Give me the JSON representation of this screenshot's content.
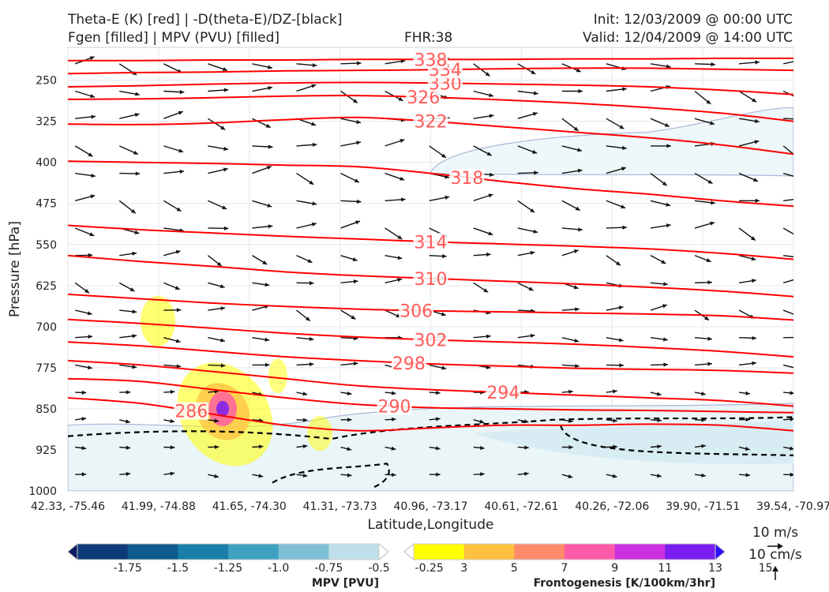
{
  "header": {
    "title_line1": "Theta-E (K) [red] | -D(theta-E)/DZ-[black]",
    "title_line2": "Fgen [filled] | MPV (PVU) [filled]",
    "fhr": "FHR:38",
    "init": "Init: 12/03/2009 @ 00:00 UTC",
    "valid": "Valid: 12/04/2009 @ 14:00 UTC"
  },
  "chart_data": {
    "type": "cross-section",
    "xlabel": "Latitude,Longitude",
    "ylabel": "Pressure [hPa]",
    "x_ticks": [
      "42.33, -75.46",
      "41.99, -74.88",
      "41.65, -74.30",
      "41.31, -73.73",
      "40.96, -73.17",
      "40.61, -72.61",
      "40.26, -72.06",
      "39.90, -71.51",
      "39.54, -70.97"
    ],
    "y_ticks": [
      250,
      325,
      400,
      475,
      550,
      625,
      700,
      775,
      850,
      925,
      1000
    ],
    "ylim": [
      1000,
      190
    ],
    "y_scale": "linear-inverted",
    "theta_e_color": "#ff0000",
    "theta_e_contours": [
      {
        "level": 286,
        "label": "286",
        "label_x": 0.17,
        "y": [
          830,
          840,
          860,
          880,
          890,
          885,
          880,
          880,
          878,
          880,
          890
        ]
      },
      {
        "level": 290,
        "label": "290",
        "label_x": 0.45,
        "y": [
          795,
          800,
          815,
          830,
          842,
          848,
          850,
          852,
          853,
          855,
          857
        ]
      },
      {
        "level": 294,
        "label": "294",
        "label_x": 0.6,
        "y": [
          762,
          770,
          782,
          795,
          808,
          815,
          820,
          825,
          830,
          835,
          845
        ]
      },
      {
        "level": 298,
        "label": "298",
        "label_x": 0.47,
        "y": [
          728,
          735,
          745,
          755,
          762,
          768,
          772,
          776,
          778,
          780,
          785
        ]
      },
      {
        "level": 302,
        "label": "302",
        "label_x": 0.5,
        "y": [
          687,
          694,
          703,
          712,
          719,
          724,
          728,
          732,
          738,
          745,
          755
        ]
      },
      {
        "level": 306,
        "label": "306",
        "label_x": 0.48,
        "y": [
          641,
          649,
          657,
          663,
          668,
          671,
          673,
          675,
          677,
          680,
          688
        ]
      },
      {
        "level": 310,
        "label": "310",
        "label_x": 0.5,
        "y": [
          570,
          581,
          590,
          600,
          607,
          612,
          617,
          622,
          628,
          635,
          645
        ]
      },
      {
        "level": 314,
        "label": "314",
        "label_x": 0.5,
        "y": [
          515,
          523,
          529,
          535,
          540,
          545,
          549,
          553,
          558,
          566,
          577
        ]
      },
      {
        "level": 318,
        "label": "318",
        "label_x": 0.55,
        "y": [
          398,
          400,
          402,
          405,
          408,
          420,
          435,
          448,
          458,
          470,
          480
        ]
      },
      {
        "level": 322,
        "label": "322",
        "label_x": 0.5,
        "y": [
          330,
          331,
          328,
          322,
          318,
          325,
          335,
          345,
          355,
          368,
          385
        ]
      },
      {
        "level": 326,
        "label": "326",
        "label_x": 0.49,
        "y": [
          285,
          284,
          282,
          279,
          278,
          281,
          286,
          292,
          300,
          310,
          325
        ]
      },
      {
        "level": 330,
        "label": "330",
        "label_x": 0.52,
        "y": [
          262,
          260,
          257,
          255,
          254,
          255,
          257,
          259,
          262,
          268,
          276
        ]
      },
      {
        "level": 334,
        "label": "334",
        "label_x": 0.52,
        "y": [
          238,
          236,
          235,
          233,
          232,
          231,
          229,
          228,
          228,
          230,
          232
        ]
      },
      {
        "level": 338,
        "label": "338",
        "label_x": 0.5,
        "y": [
          214,
          214,
          213,
          213,
          212,
          212,
          212,
          211,
          211,
          210,
          210
        ]
      }
    ],
    "wind_quiver": {
      "label_u": "10 m/s",
      "label_w": "10 cm/s",
      "color": "#111111"
    },
    "mpv_colorbar": {
      "label": "MPV [PVU]",
      "ticks": [
        "-1.75",
        "-1.5",
        "-1.25",
        "-1.0",
        "-0.75",
        "-0.5",
        "-0.25"
      ],
      "colors": [
        "#0a1a5c",
        "#0d3a78",
        "#0f5a8e",
        "#1a7fa8",
        "#3fa0c2",
        "#7fbfd8",
        "#bfdfea",
        "#ffffff"
      ]
    },
    "fgen_colorbar": {
      "label": "Frontogenesis [K/100km/3hr]",
      "ticks": [
        "3",
        "5",
        "7",
        "9",
        "11",
        "13",
        "15"
      ],
      "colors": [
        "#ffffff",
        "#ffff00",
        "#ffc040",
        "#ff8a6a",
        "#ff5aa8",
        "#cc30e0",
        "#7a1ef0",
        "#2a10ff"
      ]
    }
  }
}
